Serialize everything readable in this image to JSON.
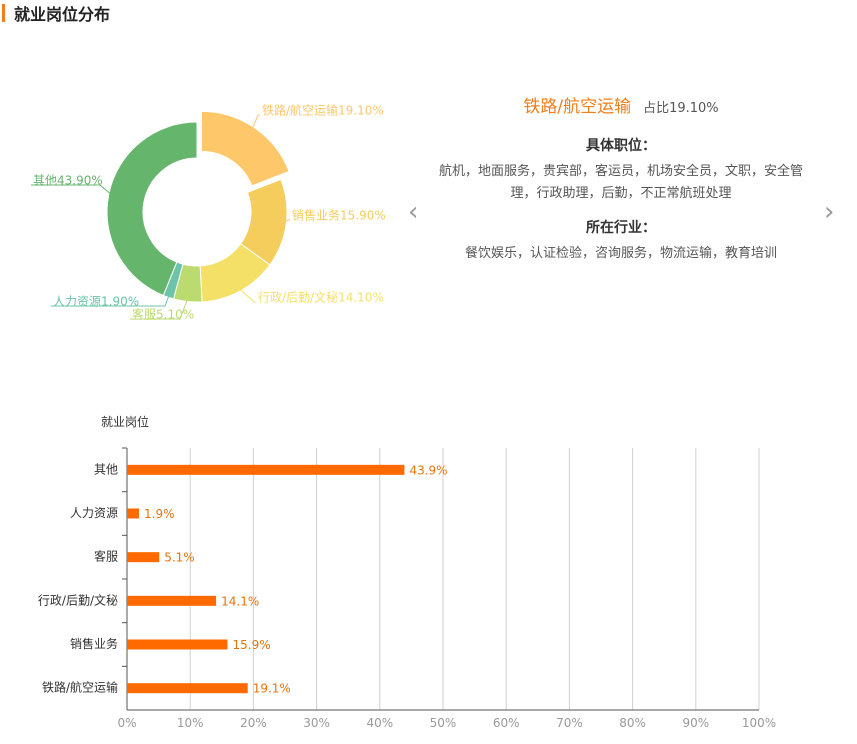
{
  "page": {
    "title": "就业岗位分布"
  },
  "colors": {
    "accent": "#f07e1a",
    "bar": "#ff6a00",
    "bar_label": "#e8730c"
  },
  "donut": {
    "segments": [
      {
        "label": "铁路/航空运输19.10%",
        "value": 19.1,
        "color": "#fdc76a"
      },
      {
        "label": "销售业务15.90%",
        "value": 15.9,
        "color": "#f4cd5c"
      },
      {
        "label": "行政/后勤/文秘14.10%",
        "value": 14.1,
        "color": "#f4e067"
      },
      {
        "label": "客服5.10%",
        "value": 5.1,
        "color": "#bbda70"
      },
      {
        "label": "人力资源1.90%",
        "value": 1.9,
        "color": "#6cc3a7"
      },
      {
        "label": "其他43.90%",
        "value": 43.9,
        "color": "#66b56d"
      }
    ]
  },
  "detail": {
    "name": "铁路/航空运输",
    "share": "占比19.10%",
    "positions_title": "具体职位：",
    "positions": "航机，地面服务，贵宾部，客运员，机场安全员，文职，安全管理，行政助理，后勤，不正常航班处理",
    "industries_title": "所在行业：",
    "industries": "餐饮娱乐，认证检验，咨询服务，物流运输，教育培训",
    "prev_icon": "chevron-left-icon",
    "next_icon": "chevron-right-icon"
  },
  "chart_data": {
    "type": "bar",
    "orientation": "horizontal",
    "ylabel": "就业岗位",
    "categories": [
      "其他",
      "人力资源",
      "客服",
      "行政/后勤/文秘",
      "销售业务",
      "铁路/航空运输"
    ],
    "values": [
      43.9,
      1.9,
      5.1,
      14.1,
      15.9,
      19.1
    ],
    "value_labels": [
      "43.9%",
      "1.9%",
      "5.1%",
      "14.1%",
      "15.9%",
      "19.1%"
    ],
    "xlim": [
      0,
      100
    ],
    "xticks": [
      "0%",
      "10%",
      "20%",
      "30%",
      "40%",
      "50%",
      "60%",
      "70%",
      "80%",
      "90%",
      "100%"
    ],
    "grid": true
  }
}
